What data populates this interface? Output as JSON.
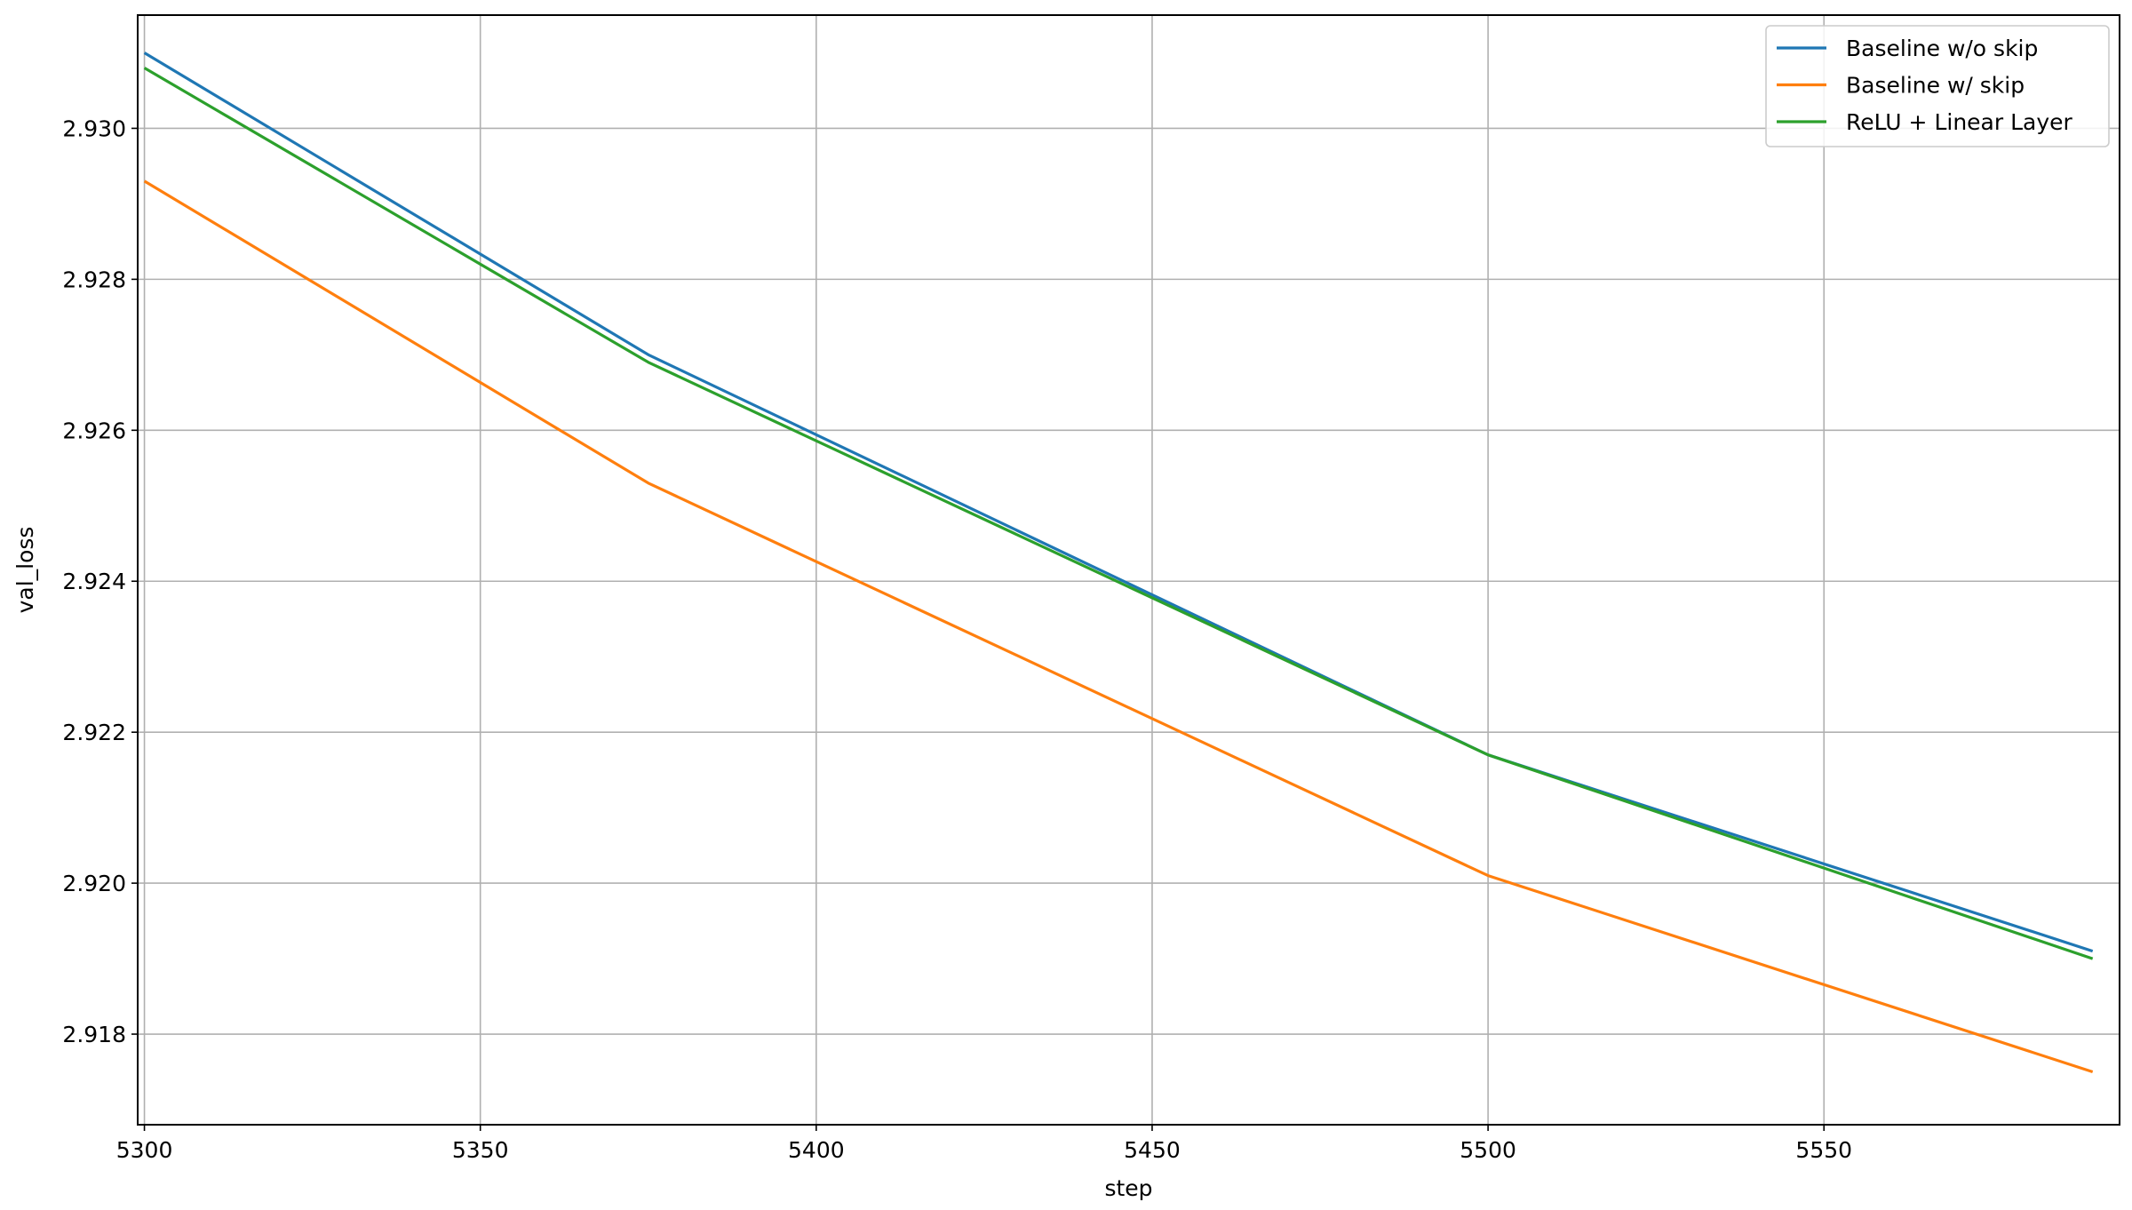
{
  "chart_data": {
    "type": "line",
    "title": "",
    "xlabel": "step",
    "ylabel": "val_loss",
    "xlim": [
      5299,
      5594
    ],
    "ylim": [
      2.9168,
      2.9315
    ],
    "xticks": [
      5300,
      5350,
      5400,
      5450,
      5500,
      5550
    ],
    "yticks": [
      2.918,
      2.92,
      2.922,
      2.924,
      2.926,
      2.928,
      2.93
    ],
    "grid": true,
    "legend_position": "top-right",
    "x": [
      5300,
      5375,
      5500,
      5590
    ],
    "series": [
      {
        "name": "Baseline w/o skip",
        "color": "#1f77b4",
        "values": [
          2.931,
          2.927,
          2.9217,
          2.9191
        ]
      },
      {
        "name": "Baseline w/ skip",
        "color": "#ff7f0e",
        "values": [
          2.9293,
          2.9253,
          2.9201,
          2.9175
        ]
      },
      {
        "name": "ReLU + Linear Layer",
        "color": "#2ca02c",
        "values": [
          2.9308,
          2.9269,
          2.9217,
          2.919
        ]
      }
    ]
  }
}
